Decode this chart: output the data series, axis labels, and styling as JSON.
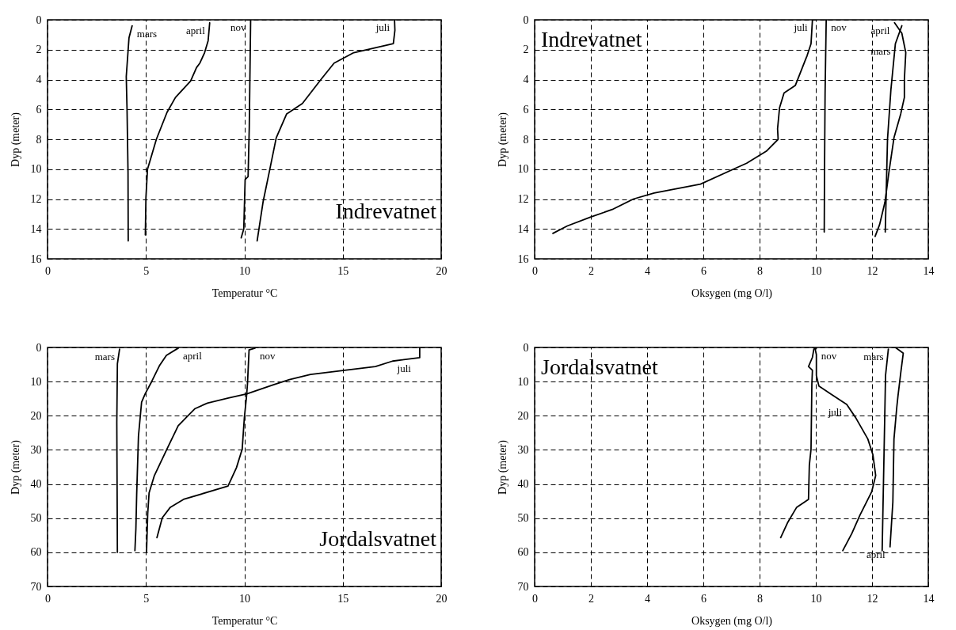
{
  "chart_data": [
    {
      "type": "line",
      "title": "Indrevatnet",
      "xlabel": "Temperatur °C",
      "ylabel": "Dyp (meter)",
      "xlim": [
        0,
        20
      ],
      "ylim": [
        16,
        0
      ],
      "xticks": [
        0,
        5,
        10,
        15,
        20
      ],
      "yticks": [
        0,
        2,
        4,
        6,
        8,
        10,
        12,
        14,
        16
      ],
      "grid": true,
      "series": [
        {
          "name": "mars",
          "color": "#000000",
          "x": [
            4.3,
            4.14,
            4.0,
            4.04,
            4.09,
            4.1
          ],
          "values": [
            0.4,
            1.2,
            3.8,
            6.0,
            10.2,
            14.8
          ]
        },
        {
          "name": "april",
          "color": "#000000",
          "x": [
            8.24,
            8.16,
            7.98,
            7.74,
            7.57,
            7.27,
            6.5,
            6.07,
            5.53,
            5.24,
            5.08,
            5.0,
            4.97
          ],
          "values": [
            0.2,
            1.4,
            2.2,
            2.9,
            3.2,
            4.1,
            5.2,
            6.2,
            8.0,
            9.3,
            10.0,
            11.9,
            14.4
          ]
        },
        {
          "name": "nov",
          "color": "#000000",
          "x": [
            10.32,
            10.29,
            10.25,
            10.19,
            10.04,
            9.97,
            9.84
          ],
          "values": [
            0,
            3.1,
            7.2,
            10.5,
            10.7,
            14.0,
            14.6
          ]
        },
        {
          "name": "juli",
          "color": "#000000",
          "x": [
            17.63,
            17.65,
            17.57,
            15.56,
            14.56,
            13.89,
            12.95,
            12.15,
            11.62,
            11.28,
            10.95,
            10.65
          ],
          "values": [
            0,
            0.7,
            1.6,
            2.2,
            2.9,
            4.0,
            5.6,
            6.3,
            7.9,
            10.1,
            12.2,
            14.8
          ]
        }
      ]
    },
    {
      "type": "line",
      "title": "Indrevatnet",
      "xlabel": "Oksygen (mg O/l)",
      "ylabel": "Dyp (meter)",
      "xlim": [
        0,
        14
      ],
      "ylim": [
        16,
        0
      ],
      "xticks": [
        0,
        2,
        4,
        6,
        8,
        10,
        12,
        14
      ],
      "yticks": [
        0,
        2,
        4,
        6,
        8,
        10,
        12,
        14,
        16
      ],
      "grid": true,
      "series": [
        {
          "name": "juli",
          "color": "#000000",
          "x": [
            9.88,
            9.83,
            9.69,
            9.27,
            8.87,
            8.71,
            8.64,
            8.66,
            8.24,
            7.54,
            7.07,
            5.9,
            4.25,
            3.51,
            2.76,
            2.0,
            1.16,
            0.65
          ],
          "values": [
            0,
            1.6,
            2.4,
            4.4,
            4.9,
            5.9,
            7.3,
            8.0,
            8.8,
            9.6,
            10.0,
            11.0,
            11.6,
            12.0,
            12.7,
            13.2,
            13.8,
            14.3
          ]
        },
        {
          "name": "nov",
          "color": "#000000",
          "x": [
            10.37,
            10.33,
            10.31,
            10.3
          ],
          "values": [
            0,
            4.9,
            10.2,
            14.2
          ]
        },
        {
          "name": "mars",
          "color": "#000000",
          "x": [
            13.06,
            12.83,
            12.67,
            12.55,
            12.5,
            12.47
          ],
          "values": [
            0.4,
            1.6,
            4.7,
            8.0,
            11.9,
            14.2
          ]
        },
        {
          "name": "april",
          "color": "#000000",
          "x": [
            12.8,
            13.06,
            13.2,
            13.15,
            13.15,
            13.02,
            12.78,
            12.6,
            12.46,
            12.27,
            12.11
          ],
          "values": [
            0.2,
            0.9,
            2.2,
            4.0,
            5.2,
            6.3,
            7.9,
            10.2,
            12.2,
            13.7,
            14.5
          ]
        }
      ]
    },
    {
      "type": "line",
      "title": "Jordalsvatnet",
      "xlabel": "Temperatur °C",
      "ylabel": "Dyp (meter)",
      "xlim": [
        0,
        20
      ],
      "ylim": [
        70,
        0
      ],
      "xticks": [
        0,
        5,
        10,
        15,
        20
      ],
      "yticks": [
        0,
        10,
        20,
        30,
        40,
        50,
        60,
        70
      ],
      "grid": true,
      "series": [
        {
          "name": "mars",
          "color": "#000000",
          "x": [
            3.66,
            3.55,
            3.52,
            3.55
          ],
          "values": [
            0.5,
            4.8,
            22,
            60
          ]
        },
        {
          "name": "april",
          "color": "#000000",
          "x": [
            6.64,
            6.04,
            5.7,
            5.3,
            4.96,
            4.78,
            4.62,
            4.53,
            4.49,
            4.44
          ],
          "values": [
            0.2,
            2.3,
            5.2,
            9.9,
            13.6,
            16,
            26,
            43,
            53,
            59.5
          ]
        },
        {
          "name": "nov",
          "color": "#000000",
          "x": [
            10.54,
            10.24,
            10.16,
            10.11,
            10.0,
            9.89,
            9.6,
            9.17,
            6.91,
            6.24,
            5.83,
            5.56
          ],
          "values": [
            0.2,
            0.7,
            10.6,
            14.4,
            20.6,
            29.8,
            35.2,
            40.6,
            44.5,
            46.8,
            49.9,
            55.7
          ]
        },
        {
          "name": "juli",
          "color": "#000000",
          "x": [
            18.91,
            18.91,
            17.53,
            16.66,
            13.36,
            12.29,
            11.48,
            10.13,
            9.19,
            8.12,
            7.5,
            7.24,
            6.64,
            6.03,
            5.43,
            5.16,
            5.09,
            5.03
          ],
          "values": [
            0,
            3,
            4,
            5.6,
            7.9,
            9.4,
            10.9,
            13.6,
            14.8,
            16.3,
            17.9,
            19.4,
            22.9,
            30.2,
            37.5,
            42.6,
            48.7,
            60
          ]
        }
      ]
    },
    {
      "type": "line",
      "title": "Jordalsvatnet",
      "xlabel": "Oksygen (mg O/l)",
      "ylabel": "Dyp (meter)",
      "xlim": [
        0,
        14
      ],
      "ylim": [
        70,
        0
      ],
      "xticks": [
        0,
        2,
        4,
        6,
        8,
        10,
        12,
        14
      ],
      "yticks": [
        0,
        10,
        20,
        30,
        40,
        50,
        60,
        70
      ],
      "grid": true,
      "series": [
        {
          "name": "nov",
          "color": "#000000",
          "x": [
            10.02,
            9.93,
            9.88,
            9.74,
            9.88,
            9.86,
            9.83,
            9.77,
            9.74,
            9.32,
            8.99,
            8.75
          ],
          "values": [
            0.2,
            0.5,
            2.9,
            5.6,
            6.7,
            10.6,
            29.8,
            34.5,
            44.5,
            46.8,
            51.4,
            55.7
          ]
        },
        {
          "name": "juli",
          "color": "#000000",
          "x": [
            9.97,
            10.02,
            10.02,
            10.11,
            10.53,
            11.1,
            11.42,
            11.85,
            12.03,
            12.13,
            11.99,
            11.57,
            11.28,
            10.96
          ],
          "values": [
            0.2,
            2.1,
            8.2,
            11.3,
            13.6,
            16.7,
            20.6,
            26.8,
            31.4,
            37.5,
            42.2,
            49.1,
            54.5,
            59.5
          ]
        },
        {
          "name": "mars",
          "color": "#000000",
          "x": [
            12.58,
            12.48,
            12.36
          ],
          "values": [
            0.5,
            8.2,
            59.5
          ]
        },
        {
          "name": "april",
          "color": "#000000",
          "x": [
            12.83,
            13.11,
            13.02,
            12.92,
            12.88,
            12.78,
            12.74,
            12.64
          ],
          "values": [
            0,
            1.7,
            7.5,
            14.4,
            17.5,
            26.8,
            45.3,
            58.4
          ]
        }
      ]
    }
  ]
}
